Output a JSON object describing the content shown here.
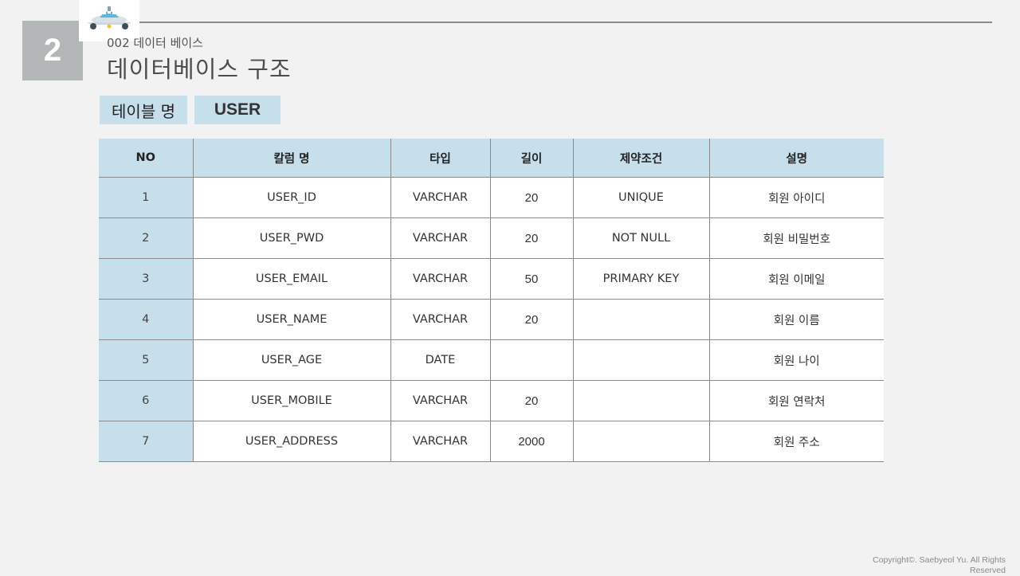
{
  "slide": {
    "number": "2",
    "subtitle": "002 데이터 베이스",
    "title": "데이터베이스 구조",
    "table_label": "테이블 명",
    "table_name": "USER",
    "copyright": "Copyright©. Saebyeol Yu. All Rights Reserved",
    "logo_icon": "airplane-icon"
  },
  "schema": {
    "headers": [
      "NO",
      "칼럼 명",
      "타입",
      "길이",
      "제약조건",
      "설명"
    ],
    "rows": [
      {
        "no": "1",
        "column": "USER_ID",
        "type": "VARCHAR",
        "length": "20",
        "constraint": "UNIQUE",
        "desc": "회원 아이디"
      },
      {
        "no": "2",
        "column": "USER_PWD",
        "type": "VARCHAR",
        "length": "20",
        "constraint": "NOT NULL",
        "desc": "회원 비밀번호"
      },
      {
        "no": "3",
        "column": "USER_EMAIL",
        "type": "VARCHAR",
        "length": "50",
        "constraint": "PRIMARY KEY",
        "desc": "회원 이메일"
      },
      {
        "no": "4",
        "column": "USER_NAME",
        "type": "VARCHAR",
        "length": "20",
        "constraint": "",
        "desc": "회원 이름"
      },
      {
        "no": "5",
        "column": "USER_AGE",
        "type": "DATE",
        "length": "",
        "constraint": "",
        "desc": "회원 나이"
      },
      {
        "no": "6",
        "column": "USER_MOBILE",
        "type": "VARCHAR",
        "length": "20",
        "constraint": "",
        "desc": "회원 연락처"
      },
      {
        "no": "7",
        "column": "USER_ADDRESS",
        "type": "VARCHAR",
        "length": "2000",
        "constraint": "",
        "desc": "회원 주소"
      }
    ]
  },
  "colors": {
    "header_fill": "#c7dfeb",
    "number_box": "#b3b7b8",
    "background": "#f2f2f2"
  }
}
